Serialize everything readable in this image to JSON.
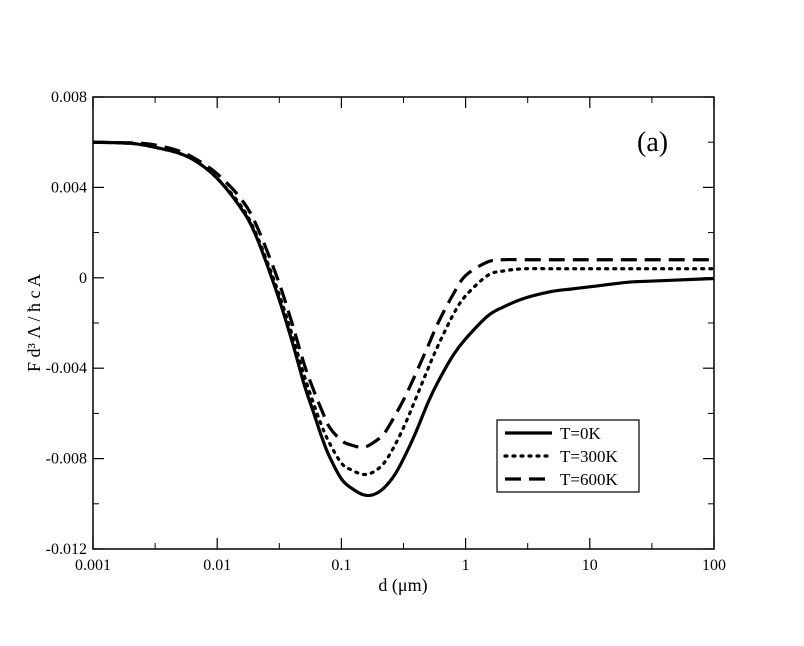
{
  "chart_data": {
    "type": "line",
    "annotation": "(a)",
    "xlabel": "d (μm)",
    "ylabel": "F d³ Λ / ħ c A",
    "x_scale": "log",
    "xlim": [
      0.001,
      100
    ],
    "ylim": [
      -0.012,
      0.008
    ],
    "x_ticks": [
      {
        "value": 0.001,
        "label": "0.001"
      },
      {
        "value": 0.01,
        "label": "0.01"
      },
      {
        "value": 0.1,
        "label": "0.1"
      },
      {
        "value": 1,
        "label": "1"
      },
      {
        "value": 10,
        "label": "10"
      },
      {
        "value": 100,
        "label": "100"
      }
    ],
    "y_ticks": [
      {
        "value": 0.008,
        "label": "0.008"
      },
      {
        "value": 0.004,
        "label": "0.004"
      },
      {
        "value": 0,
        "label": "0"
      },
      {
        "value": -0.004,
        "label": "-0.004"
      },
      {
        "value": -0.008,
        "label": "-0.008"
      },
      {
        "value": -0.012,
        "label": "-0.012"
      }
    ],
    "legend_position": "lower-right",
    "grid": false,
    "series": [
      {
        "name": "T=0K",
        "style": "solid",
        "x": [
          0.001,
          0.002,
          0.003,
          0.005,
          0.007,
          0.01,
          0.015,
          0.02,
          0.03,
          0.04,
          0.05,
          0.06,
          0.07,
          0.08,
          0.1,
          0.12,
          0.15,
          0.18,
          0.22,
          0.27,
          0.33,
          0.4,
          0.5,
          0.6,
          0.8,
          1,
          1.5,
          2,
          3,
          5,
          7,
          10,
          20,
          30,
          50,
          100
        ],
        "y": [
          0.006,
          0.00595,
          0.0058,
          0.0055,
          0.0051,
          0.0044,
          0.0032,
          0.002,
          -0.0006,
          -0.0028,
          -0.0047,
          -0.006,
          -0.0071,
          -0.0079,
          -0.0089,
          -0.0093,
          -0.0096,
          -0.0096,
          -0.0093,
          -0.0087,
          -0.0078,
          -0.0068,
          -0.0055,
          -0.0046,
          -0.0034,
          -0.0027,
          -0.0017,
          -0.0013,
          -0.0009,
          -0.0006,
          -0.0005,
          -0.0004,
          -0.0002,
          -0.00015,
          -0.0001,
          -3e-05
        ]
      },
      {
        "name": "T=300K",
        "style": "dotted",
        "x": [
          0.001,
          0.002,
          0.003,
          0.005,
          0.007,
          0.01,
          0.015,
          0.02,
          0.03,
          0.04,
          0.05,
          0.06,
          0.07,
          0.08,
          0.1,
          0.12,
          0.15,
          0.18,
          0.22,
          0.27,
          0.33,
          0.4,
          0.5,
          0.6,
          0.8,
          1,
          1.5,
          2,
          3,
          5,
          7,
          10,
          20,
          30,
          50,
          100
        ],
        "y": [
          0.006,
          0.00595,
          0.0058,
          0.0055,
          0.0051,
          0.0044,
          0.0033,
          0.0021,
          -0.0004,
          -0.0025,
          -0.0043,
          -0.0056,
          -0.0066,
          -0.0073,
          -0.0082,
          -0.0085,
          -0.0087,
          -0.0086,
          -0.0082,
          -0.0074,
          -0.0064,
          -0.0053,
          -0.004,
          -0.003,
          -0.0016,
          -0.0008,
          0.0001,
          0.0003,
          0.0004,
          0.0004,
          0.0004,
          0.0004,
          0.0004,
          0.0004,
          0.0004,
          0.0004
        ]
      },
      {
        "name": "T=600K",
        "style": "dashed",
        "x": [
          0.001,
          0.002,
          0.003,
          0.005,
          0.007,
          0.01,
          0.015,
          0.02,
          0.03,
          0.04,
          0.05,
          0.06,
          0.07,
          0.08,
          0.1,
          0.12,
          0.15,
          0.18,
          0.22,
          0.27,
          0.33,
          0.4,
          0.5,
          0.6,
          0.8,
          1,
          1.5,
          2,
          3,
          5,
          7,
          10,
          20,
          30,
          50,
          100
        ],
        "y": [
          0.006,
          0.00597,
          0.0059,
          0.0056,
          0.0052,
          0.0046,
          0.0036,
          0.0025,
          0.0001,
          -0.002,
          -0.0038,
          -0.005,
          -0.0059,
          -0.0066,
          -0.0072,
          -0.0074,
          -0.0075,
          -0.0073,
          -0.0069,
          -0.0061,
          -0.0052,
          -0.0042,
          -0.003,
          -0.002,
          -0.0007,
          0.0001,
          0.0007,
          0.0008,
          0.0008,
          0.0008,
          0.0008,
          0.0008,
          0.0008,
          0.0008,
          0.0008,
          0.0008
        ]
      }
    ]
  }
}
